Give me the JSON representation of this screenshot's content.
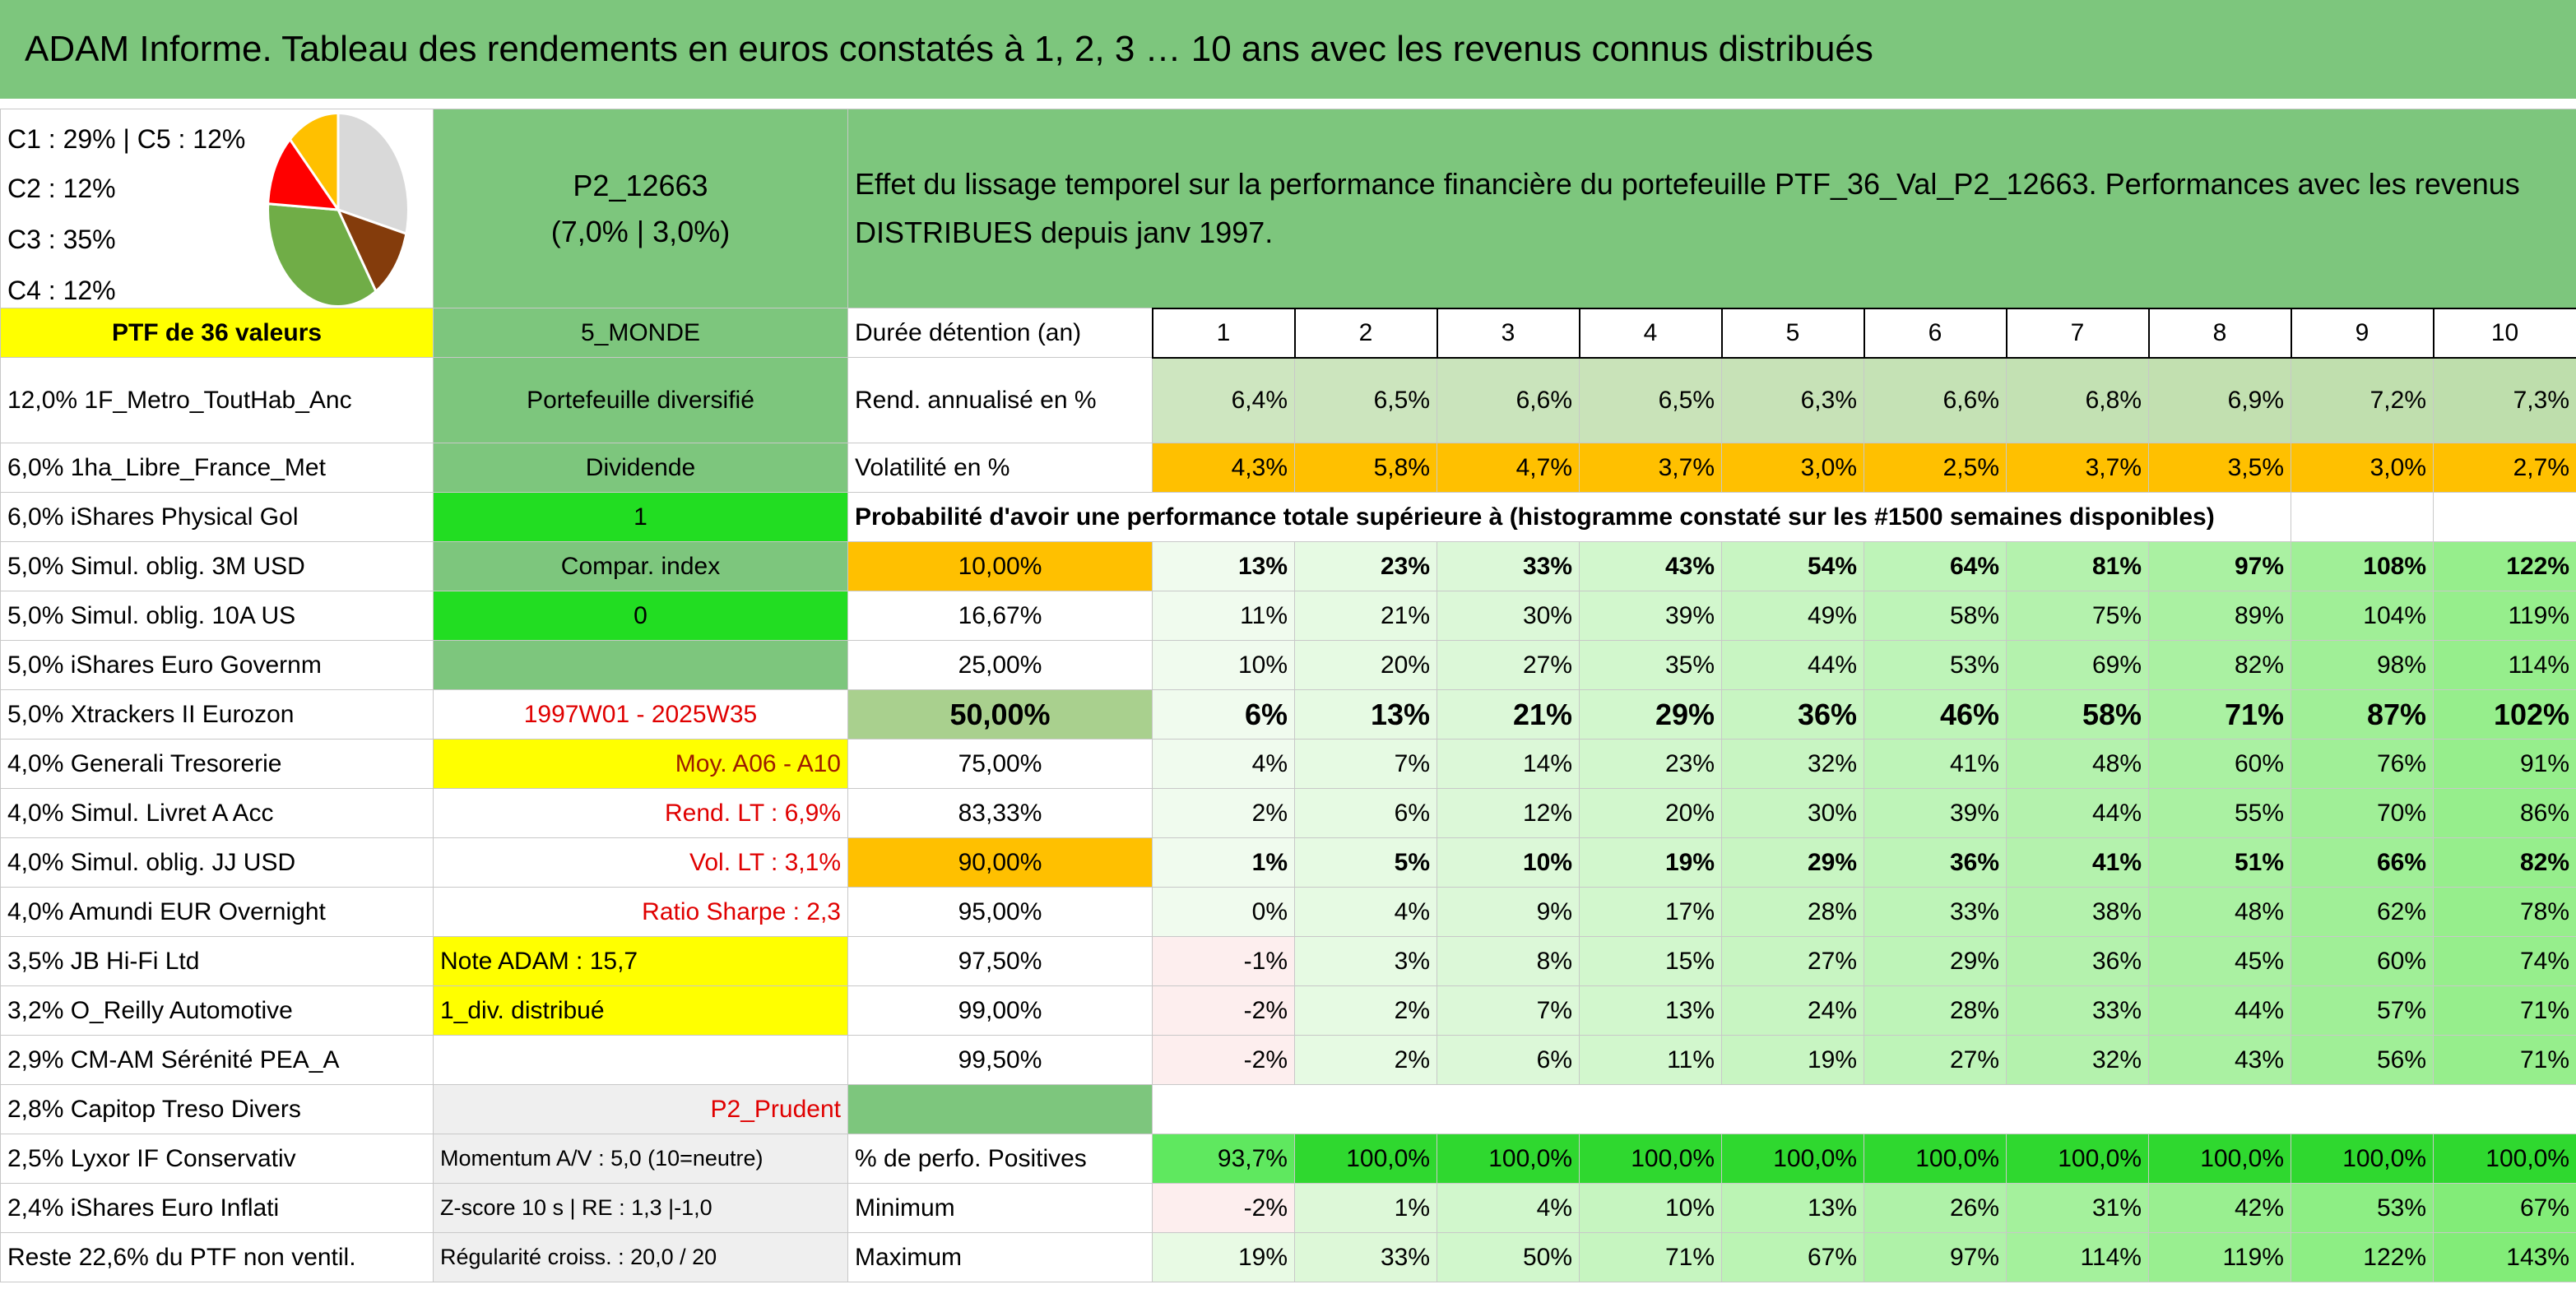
{
  "header": {
    "title": "ADAM Informe. Tableau des rendements en euros constatés à 1, 2, 3 … 10 ans avec les revenus connus distribués"
  },
  "summary": {
    "pie": {
      "values": [
        29,
        12,
        35,
        12,
        12
      ],
      "colors": [
        "#d9d9d9",
        "#843c0c",
        "#70ad47",
        "#ff0000",
        "#ffc000"
      ]
    },
    "pie_legend": [
      "C1 : 29% | C5 : 12%",
      "C2 : 12%",
      "C3 : 35%",
      "C4 : 12%"
    ],
    "portfolio": "P2_12663",
    "parameters": "(7,0% | 3,0%)",
    "description": "Effet du lissage temporel sur la performance financière du portefeuille PTF_36_Val_P2_12663. Performances avec les revenus DISTRIBUES depuis janv 1997."
  },
  "holdings": {
    "title": "PTF de 36 valeurs",
    "rows": [
      "12,0% 1F_Metro_ToutHab_Anc",
      "6,0% 1ha_Libre_France_Met",
      "6,0% iShares Physical Gol",
      "5,0% Simul. oblig. 3M USD",
      "5,0% Simul. oblig. 10A US",
      "5,0% iShares Euro Governm",
      "5,0% Xtrackers II Eurozon",
      "4,0% Generali Tresorerie",
      "4,0% Simul. Livret A Acc",
      "4,0% Simul. oblig. JJ USD",
      "4,0% Amundi EUR Overnight",
      "3,5% JB Hi-Fi Ltd",
      "3,2% O_Reilly Automotive",
      "2,9% CM-AM Sérénité PEA_A",
      "2,8% Capitop Treso Divers",
      "2,5% Lyxor IF Conservativ",
      "2,4% iShares Euro Inflati",
      "Reste 22,6% du PTF non ventil."
    ]
  },
  "info": {
    "rows": [
      "5_MONDE",
      "Portefeuille diversifié",
      "Dividende",
      "1",
      "Compar. index",
      "0",
      null,
      "1997W01 - 2025W35",
      "Moy. A06 - A10",
      "Rend. LT : 6,9%",
      "Vol. LT : 3,1%",
      "Ratio Sharpe : 2,3",
      "Note ADAM : 15,7",
      "1_div. distribué",
      null,
      "P2_Prudent",
      "Momentum A/V : 5,0 (10=neutre)",
      "Z-score 10 s | RE : 1,3 |-1,0",
      "Régularité croiss. : 20,0 / 20"
    ]
  },
  "performance": {
    "duration_label": "Durée détention (an)",
    "durations": [
      1,
      2,
      3,
      4,
      5,
      6,
      7,
      8,
      9,
      10
    ],
    "annual_return": {
      "label": "Rend. annualisé en %",
      "values": [
        "6,4%",
        "6,5%",
        "6,6%",
        "6,5%",
        "6,3%",
        "6,6%",
        "6,8%",
        "6,9%",
        "7,2%",
        "7,3%"
      ]
    },
    "volatility": {
      "label": "Volatilité en %",
      "values": [
        "4,3%",
        "5,8%",
        "4,7%",
        "3,7%",
        "3,0%",
        "2,5%",
        "3,7%",
        "3,5%",
        "3,0%",
        "2,7%"
      ]
    },
    "probability_title": "Probabilité d'avoir une performance totale supérieure à (histogramme constaté sur les #1500 semaines disponibles)",
    "probability": {
      "thresholds": [
        "10,00%",
        "16,67%",
        "25,00%",
        "50,00%",
        "75,00%",
        "83,33%",
        "90,00%",
        "95,00%",
        "97,50%",
        "99,00%",
        "99,50%"
      ],
      "values": [
        [
          "13%",
          "23%",
          "33%",
          "43%",
          "54%",
          "64%",
          "81%",
          "97%",
          "108%",
          "122%"
        ],
        [
          "11%",
          "21%",
          "30%",
          "39%",
          "49%",
          "58%",
          "75%",
          "89%",
          "104%",
          "119%"
        ],
        [
          "10%",
          "20%",
          "27%",
          "35%",
          "44%",
          "53%",
          "69%",
          "82%",
          "98%",
          "114%"
        ],
        [
          "6%",
          "13%",
          "21%",
          "29%",
          "36%",
          "46%",
          "58%",
          "71%",
          "87%",
          "102%"
        ],
        [
          "4%",
          "7%",
          "14%",
          "23%",
          "32%",
          "41%",
          "48%",
          "60%",
          "76%",
          "91%"
        ],
        [
          "2%",
          "6%",
          "12%",
          "20%",
          "30%",
          "39%",
          "44%",
          "55%",
          "70%",
          "86%"
        ],
        [
          "1%",
          "5%",
          "10%",
          "19%",
          "29%",
          "36%",
          "41%",
          "51%",
          "66%",
          "82%"
        ],
        [
          "0%",
          "4%",
          "9%",
          "17%",
          "28%",
          "33%",
          "38%",
          "48%",
          "62%",
          "78%"
        ],
        [
          "-1%",
          "3%",
          "8%",
          "15%",
          "27%",
          "29%",
          "36%",
          "45%",
          "60%",
          "74%"
        ],
        [
          "-2%",
          "2%",
          "7%",
          "13%",
          "24%",
          "28%",
          "33%",
          "44%",
          "57%",
          "71%"
        ],
        [
          "-2%",
          "2%",
          "6%",
          "11%",
          "19%",
          "27%",
          "32%",
          "43%",
          "56%",
          "71%"
        ]
      ]
    },
    "positive": {
      "label": "% de perfo. Positives",
      "values": [
        "93,7%",
        "100,0%",
        "100,0%",
        "100,0%",
        "100,0%",
        "100,0%",
        "100,0%",
        "100,0%",
        "100,0%",
        "100,0%"
      ]
    },
    "minimum": {
      "label": "Minimum",
      "values": [
        "-2%",
        "1%",
        "4%",
        "10%",
        "13%",
        "26%",
        "31%",
        "42%",
        "53%",
        "67%"
      ]
    },
    "maximum": {
      "label": "Maximum",
      "values": [
        "19%",
        "33%",
        "50%",
        "71%",
        "67%",
        "97%",
        "114%",
        "119%",
        "122%",
        "143%"
      ]
    }
  }
}
